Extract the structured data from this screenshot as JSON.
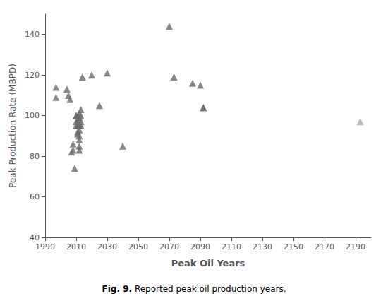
{
  "chart_data": {
    "type": "scatter",
    "caption": "Fig. 9. Reported peak oil production years.",
    "xlabel": "Peak Oil Years",
    "ylabel": "Peak Production Rate (MBPD)",
    "x": [
      1997,
      1997,
      2004,
      2005,
      2006,
      2007,
      2008,
      2008,
      2009,
      2010,
      2010,
      2010,
      2010,
      2011,
      2011,
      2011,
      2011,
      2011,
      2012,
      2012,
      2012,
      2012,
      2012,
      2012,
      2012,
      2012,
      2013,
      2013,
      2013,
      2013,
      2014,
      2020,
      2025,
      2030,
      2040,
      2070,
      2073,
      2085,
      2090,
      2092,
      2092,
      2193
    ],
    "values": [
      114,
      109,
      113,
      110,
      108,
      82,
      83,
      86,
      74,
      100,
      100,
      97,
      95,
      100,
      98,
      95,
      92,
      91,
      101,
      99,
      95,
      93,
      90,
      88,
      85,
      83,
      103,
      100,
      97,
      95,
      119,
      120,
      105,
      121,
      85,
      144,
      119,
      116,
      115,
      104,
      104,
      97
    ],
    "colors": [
      "#696969",
      "#696969",
      "#696969",
      "#696969",
      "#696969",
      "#696969",
      "#696969",
      "#696969",
      "#696969",
      "#696969",
      "#696969",
      "#696969",
      "#696969",
      "#696969",
      "#696969",
      "#696969",
      "#696969",
      "#696969",
      "#696969",
      "#696969",
      "#696969",
      "#696969",
      "#696969",
      "#696969",
      "#696969",
      "#696969",
      "#696969",
      "#696969",
      "#696969",
      "#696969",
      "#696969",
      "#696969",
      "#696969",
      "#696969",
      "#696969",
      "#696969",
      "#696969",
      "#696969",
      "#696969",
      "#696969",
      "#696969",
      "#aaaaaa"
    ],
    "marker": "triangle",
    "xlim": [
      1990,
      2200
    ],
    "ylim": [
      40,
      150
    ],
    "xticks": [
      1990,
      2010,
      2030,
      2050,
      2070,
      2090,
      2110,
      2130,
      2150,
      2170,
      2190
    ],
    "yticks": [
      40,
      60,
      80,
      100,
      120,
      140
    ],
    "grid": false
  }
}
